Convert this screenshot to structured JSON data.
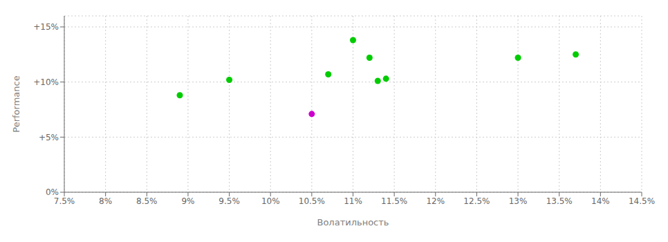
{
  "chart_data": {
    "type": "scatter",
    "xlabel": "Волатильность",
    "ylabel": "Performance",
    "xlim": [
      0.075,
      0.145
    ],
    "ylim": [
      0.0,
      0.16
    ],
    "xticks": [
      {
        "value": 0.075,
        "label": "7.5%"
      },
      {
        "value": 0.08,
        "label": "8%"
      },
      {
        "value": 0.085,
        "label": "8.5%"
      },
      {
        "value": 0.09,
        "label": "9%"
      },
      {
        "value": 0.095,
        "label": "9.5%"
      },
      {
        "value": 0.1,
        "label": "10%"
      },
      {
        "value": 0.105,
        "label": "10.5%"
      },
      {
        "value": 0.11,
        "label": "11%"
      },
      {
        "value": 0.115,
        "label": "11.5%"
      },
      {
        "value": 0.12,
        "label": "12%"
      },
      {
        "value": 0.125,
        "label": "12.5%"
      },
      {
        "value": 0.13,
        "label": "13%"
      },
      {
        "value": 0.135,
        "label": "13.5%"
      },
      {
        "value": 0.14,
        "label": "14%"
      },
      {
        "value": 0.145,
        "label": "14.5%"
      }
    ],
    "yticks": [
      {
        "value": 0.0,
        "label": "0%"
      },
      {
        "value": 0.05,
        "label": "+5%"
      },
      {
        "value": 0.1,
        "label": "+10%"
      },
      {
        "value": 0.15,
        "label": "+15%"
      }
    ],
    "grid": true,
    "marker": "circle",
    "series": [
      {
        "color": "#00cc00",
        "x": [
          0.089,
          0.095,
          0.107,
          0.11,
          0.112,
          0.113,
          0.114,
          0.13,
          0.137
        ],
        "values": [
          0.088,
          0.102,
          0.107,
          0.138,
          0.122,
          0.101,
          0.103,
          0.122,
          0.125
        ]
      },
      {
        "color": "#cc00cc",
        "x": [
          0.105
        ],
        "values": [
          0.071
        ]
      }
    ]
  }
}
